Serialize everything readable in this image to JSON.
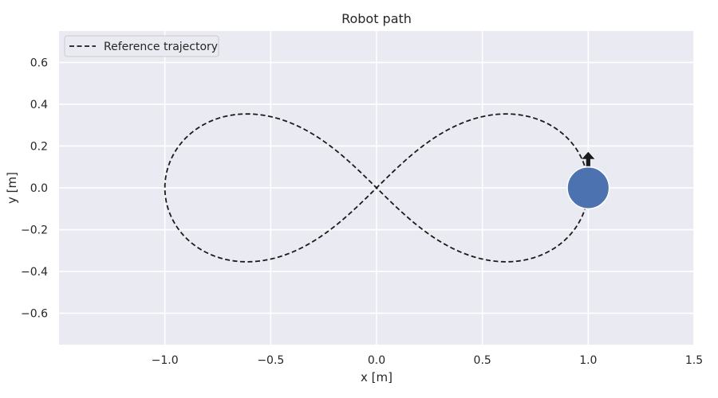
{
  "chart_data": {
    "type": "line",
    "title": "Robot path",
    "xlabel": "x [m]",
    "ylabel": "y [m]",
    "xlim": [
      -1.5,
      1.5
    ],
    "ylim": [
      -0.75,
      0.75
    ],
    "xticks": [
      -1.0,
      -0.5,
      0.0,
      0.5,
      1.0,
      1.5
    ],
    "xtick_labels": [
      "−1.0",
      "−0.5",
      "0.0",
      "0.5",
      "1.0",
      "1.5"
    ],
    "yticks": [
      -0.6,
      -0.4,
      -0.2,
      0.0,
      0.2,
      0.4,
      0.6
    ],
    "ytick_labels": [
      "−0.6",
      "−0.4",
      "−0.2",
      "0.0",
      "0.2",
      "0.4",
      "0.6"
    ],
    "grid": true,
    "legend_position": "top-left",
    "series": [
      {
        "name": "Reference trajectory",
        "style": "dashed",
        "color": "#1a1a1a",
        "curve": "figure-eight (lemniscate)",
        "x_extent": [
          -1.0,
          1.0
        ],
        "y_extent": [
          -0.354,
          0.354
        ]
      }
    ],
    "robot": {
      "x": 1.0,
      "y": 0.0,
      "radius": 0.1,
      "heading": "up",
      "color": "#4c72b0"
    },
    "colors": {
      "background": "#eaeaf2",
      "grid": "#ffffff",
      "robot": "#4c72b0",
      "trajectory": "#1a1a1a"
    }
  }
}
